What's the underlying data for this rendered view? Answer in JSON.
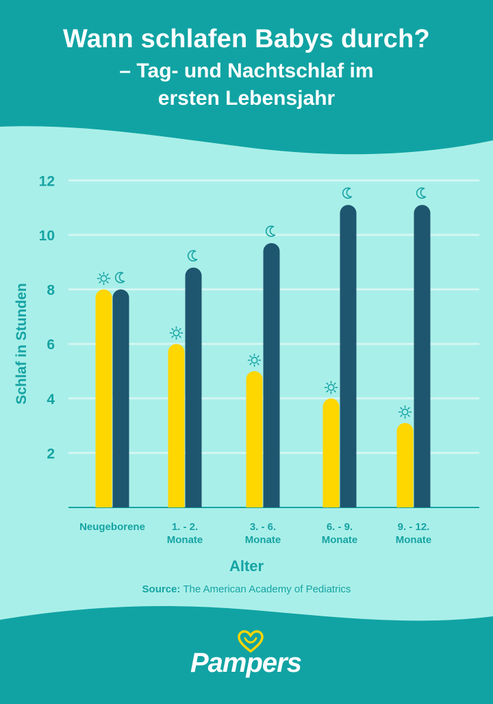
{
  "header": {
    "title": "Wann schlafen Babys durch?",
    "subtitle_line1": "– Tag- und Nachtschlaf im",
    "subtitle_line2": "ersten Lebensjahr"
  },
  "colors": {
    "header_bg": "#11a3a3",
    "panel_bg": "#a9efe9",
    "day_bar": "#fed600",
    "night_bar": "#1e566f",
    "axis_text": "#15a3a3",
    "footer_bg": "#11a3a3"
  },
  "chart_data": {
    "type": "bar",
    "title": "",
    "xlabel": "Alter",
    "ylabel": "Schlaf in Stunden",
    "ylim": [
      0,
      12
    ],
    "yticks": [
      2,
      4,
      6,
      8,
      10,
      12
    ],
    "grid": true,
    "categories": [
      "Neugeborene",
      "1. - 2.\nMonate",
      "3. - 6.\nMonate",
      "6. - 9.\nMonate",
      "9. - 12.\nMonate"
    ],
    "series": [
      {
        "icon": "sun-icon",
        "color": "#fed600",
        "values": [
          8,
          6,
          5,
          4,
          3.1
        ]
      },
      {
        "icon": "moon-icon",
        "color": "#1e566f",
        "values": [
          8,
          8.8,
          9.7,
          11.1,
          11.1
        ]
      }
    ]
  },
  "source": {
    "label": "Source:",
    "text": "The American Academy of Pediatrics"
  },
  "logo": {
    "brand": "Pampers",
    "icon": "heart-icon"
  }
}
